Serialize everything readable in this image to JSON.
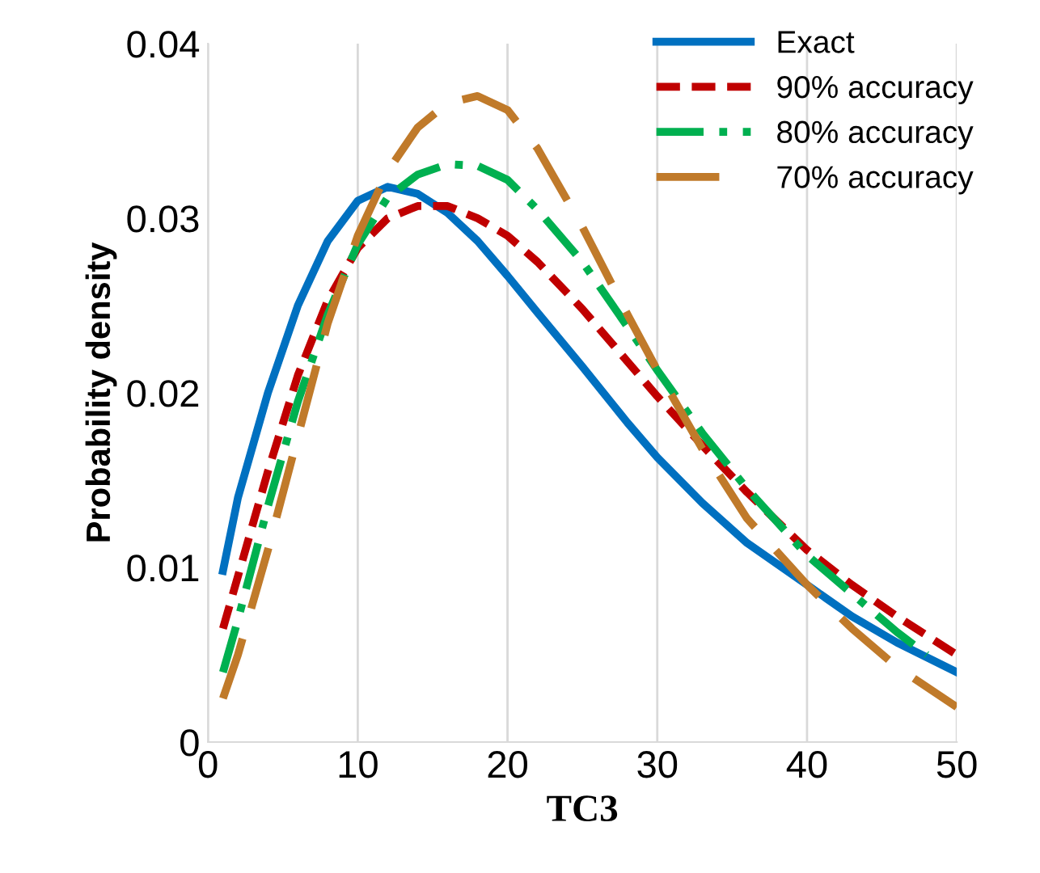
{
  "chart_data": {
    "type": "line",
    "xlabel": "TC3",
    "ylabel": "Probability density",
    "xlim": [
      0,
      50
    ],
    "xticks": [
      0,
      10,
      20,
      30,
      40,
      50
    ],
    "ylim": [
      0,
      0.04
    ],
    "yticks": [
      {
        "value": 0,
        "label": "0"
      },
      {
        "value": 0.01,
        "label": "0.01"
      },
      {
        "value": 0.02,
        "label": "0.02"
      },
      {
        "value": 0.03,
        "label": "0.03"
      },
      {
        "value": 0.04,
        "label": "0.04"
      }
    ],
    "grid": "x",
    "legend": "top right",
    "marker": "none",
    "series": [
      {
        "name": "Exact",
        "color": "#0070c0",
        "line_style": "solid",
        "x": [
          1,
          2,
          4,
          6,
          8,
          10,
          12,
          14,
          16,
          18,
          20,
          22,
          25,
          28,
          30,
          33,
          36,
          40,
          43,
          46,
          50
        ],
        "values": [
          0.0098,
          0.014,
          0.02,
          0.025,
          0.0287,
          0.031,
          0.0318,
          0.0314,
          0.0303,
          0.0287,
          0.0267,
          0.0246,
          0.0215,
          0.0183,
          0.0163,
          0.0137,
          0.0114,
          0.009,
          0.0072,
          0.0057,
          0.004
        ]
      },
      {
        "name": "90% accuracy",
        "color": "#c00000",
        "line_style": "dashed",
        "x": [
          1,
          2,
          4,
          6,
          8,
          10,
          12,
          14,
          16,
          18,
          20,
          22,
          25,
          28,
          30,
          33,
          36,
          40,
          43,
          46,
          50
        ],
        "values": [
          0.0065,
          0.0095,
          0.0155,
          0.021,
          0.0253,
          0.0283,
          0.03,
          0.0307,
          0.0307,
          0.03,
          0.029,
          0.0275,
          0.0248,
          0.0218,
          0.0198,
          0.017,
          0.0143,
          0.011,
          0.009,
          0.0072,
          0.005
        ]
      },
      {
        "name": "80% accuracy",
        "color": "#00b050",
        "line_style": "dashdot",
        "x": [
          1,
          2,
          4,
          6,
          8,
          10,
          12,
          14,
          16,
          18,
          20,
          22,
          25,
          28,
          30,
          33,
          36,
          40,
          43,
          46,
          48
        ],
        "values": [
          0.004,
          0.007,
          0.0135,
          0.0195,
          0.0245,
          0.0285,
          0.0312,
          0.0325,
          0.0331,
          0.033,
          0.0322,
          0.0305,
          0.0275,
          0.0238,
          0.0213,
          0.0177,
          0.0145,
          0.0107,
          0.0085,
          0.0063,
          0.005
        ]
      },
      {
        "name": "70% accuracy",
        "color": "#c07a2a",
        "line_style": "longdash",
        "x": [
          1,
          2,
          4,
          6,
          8,
          10,
          12,
          14,
          16,
          18,
          20,
          22,
          25,
          28,
          30,
          33,
          36,
          40,
          43,
          46,
          50
        ],
        "values": [
          0.0025,
          0.005,
          0.011,
          0.0175,
          0.024,
          0.029,
          0.0327,
          0.0352,
          0.0366,
          0.037,
          0.0362,
          0.034,
          0.0295,
          0.0245,
          0.0213,
          0.0168,
          0.0128,
          0.009,
          0.0065,
          0.0043,
          0.002
        ]
      }
    ]
  }
}
